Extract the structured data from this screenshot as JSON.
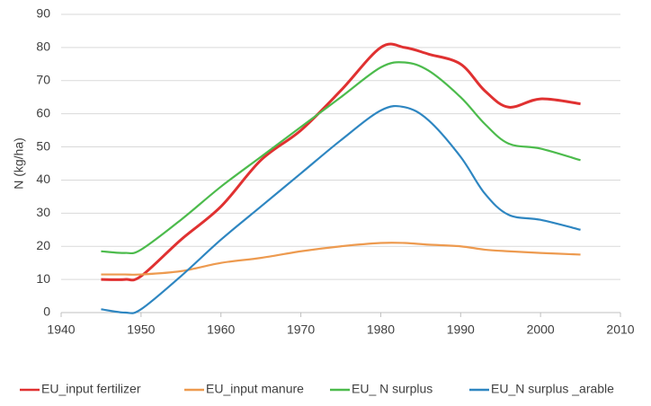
{
  "chart_data": {
    "type": "line",
    "y_label": "N (kg/ha)",
    "x": [
      1945,
      1948,
      1950,
      1955,
      1960,
      1965,
      1970,
      1975,
      1980,
      1983,
      1986,
      1990,
      1993,
      1996,
      2000,
      2005
    ],
    "series": [
      {
        "name": "EU_input fertilizer",
        "color": "#e03131",
        "values": [
          10,
          10,
          11,
          22,
          32,
          46,
          55,
          67,
          80,
          80,
          78,
          75,
          67,
          62,
          64.5,
          63
        ]
      },
      {
        "name": "EU_input manure",
        "color": "#ed9a4f",
        "values": [
          11.5,
          11.5,
          11.5,
          12.5,
          15,
          16.5,
          18.5,
          20,
          21,
          21,
          20.5,
          20,
          19,
          18.5,
          18,
          17.5
        ]
      },
      {
        "name": "EU_ N surplus",
        "color": "#4cbb4c",
        "values": [
          18.5,
          18,
          19,
          28,
          38,
          47,
          56,
          65,
          74,
          75.5,
          73,
          65,
          57,
          51,
          49.5,
          46
        ]
      },
      {
        "name": "EU_N surplus _arable",
        "color": "#2e86c1",
        "values": [
          1,
          0,
          1,
          11,
          22,
          32,
          42,
          52,
          61,
          62,
          58,
          47,
          36,
          29.5,
          28,
          25
        ]
      }
    ],
    "xlim": [
      1940,
      2010
    ],
    "xticks": [
      1940,
      1950,
      1960,
      1970,
      1980,
      1990,
      2000,
      2010
    ],
    "ylim": [
      0,
      90
    ],
    "yticks": [
      0,
      10,
      20,
      30,
      40,
      50,
      60,
      70,
      80,
      90
    ],
    "grid": true,
    "legend": "bottom"
  }
}
